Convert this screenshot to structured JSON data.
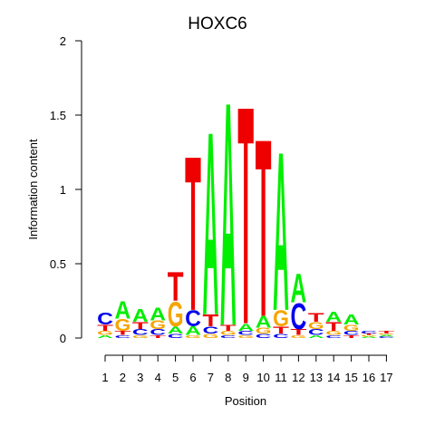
{
  "chart_data": {
    "type": "sequence_logo",
    "title": "HOXC6",
    "xlabel": "Position",
    "ylabel": "Information content",
    "ylim": [
      0,
      2
    ],
    "yticks": [
      "0",
      "0.5",
      "1",
      "1.5",
      "2"
    ],
    "positions": [
      "1",
      "2",
      "3",
      "4",
      "5",
      "6",
      "7",
      "8",
      "9",
      "10",
      "11",
      "12",
      "13",
      "14",
      "15",
      "16",
      "17"
    ],
    "colors": {
      "A": "#00ee00",
      "C": "#0000ee",
      "G": "#f5a500",
      "T": "#ee0000"
    },
    "columns": [
      [
        [
          "A",
          0.02
        ],
        [
          "G",
          0.03
        ],
        [
          "T",
          0.04
        ],
        [
          "C",
          0.08
        ]
      ],
      [
        [
          "C",
          0.02
        ],
        [
          "T",
          0.03
        ],
        [
          "G",
          0.08
        ],
        [
          "A",
          0.12
        ]
      ],
      [
        [
          "G",
          0.02
        ],
        [
          "C",
          0.04
        ],
        [
          "T",
          0.05
        ],
        [
          "A",
          0.09
        ]
      ],
      [
        [
          "T",
          0.02
        ],
        [
          "C",
          0.04
        ],
        [
          "G",
          0.06
        ],
        [
          "A",
          0.09
        ]
      ],
      [
        [
          "C",
          0.03
        ],
        [
          "A",
          0.05
        ],
        [
          "G",
          0.17
        ],
        [
          "T",
          0.2
        ]
      ],
      [
        [
          "G",
          0.02
        ],
        [
          "A",
          0.06
        ],
        [
          "C",
          0.11
        ],
        [
          "T",
          1.07
        ]
      ],
      [
        [
          "G",
          0.03
        ],
        [
          "C",
          0.05
        ],
        [
          "T",
          0.08
        ],
        [
          "A",
          1.27
        ]
      ],
      [
        [
          "C",
          0.02
        ],
        [
          "G",
          0.03
        ],
        [
          "T",
          0.04
        ],
        [
          "A",
          1.55
        ]
      ],
      [
        [
          "G",
          0.02
        ],
        [
          "C",
          0.03
        ],
        [
          "A",
          0.05
        ],
        [
          "T",
          1.51
        ]
      ],
      [
        [
          "C",
          0.03
        ],
        [
          "G",
          0.04
        ],
        [
          "A",
          0.08
        ],
        [
          "T",
          1.23
        ]
      ],
      [
        [
          "C",
          0.03
        ],
        [
          "T",
          0.05
        ],
        [
          "G",
          0.11
        ],
        [
          "A",
          1.1
        ]
      ],
      [
        [
          "G",
          0.02
        ],
        [
          "T",
          0.04
        ],
        [
          "C",
          0.18
        ],
        [
          "A",
          0.2
        ]
      ],
      [
        [
          "A",
          0.02
        ],
        [
          "C",
          0.04
        ],
        [
          "G",
          0.05
        ],
        [
          "T",
          0.06
        ]
      ],
      [
        [
          "C",
          0.02
        ],
        [
          "G",
          0.03
        ],
        [
          "T",
          0.06
        ],
        [
          "A",
          0.07
        ]
      ],
      [
        [
          "T",
          0.02
        ],
        [
          "C",
          0.03
        ],
        [
          "G",
          0.04
        ],
        [
          "A",
          0.07
        ]
      ],
      [
        [
          "A",
          0.01
        ],
        [
          "G",
          0.01
        ],
        [
          "T",
          0.01
        ],
        [
          "C",
          0.02
        ]
      ],
      [
        [
          "C",
          0.01
        ],
        [
          "A",
          0.01
        ],
        [
          "G",
          0.01
        ],
        [
          "T",
          0.02
        ]
      ]
    ]
  }
}
